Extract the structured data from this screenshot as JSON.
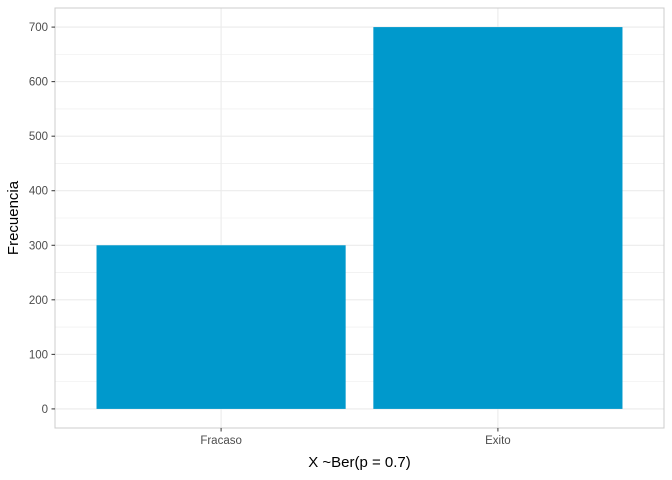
{
  "chart_data": {
    "type": "bar",
    "title": "",
    "xlabel": "X ~Ber(p = 0.7)",
    "ylabel": "Frecuencia",
    "categories": [
      "Fracaso",
      "Exito"
    ],
    "values": [
      300,
      700
    ],
    "ylim": [
      -35,
      735
    ],
    "yticks": [
      0,
      100,
      200,
      300,
      400,
      500,
      600,
      700
    ],
    "grid": true,
    "legend": "none",
    "bar_color": "#0099CC",
    "grid_color": "#ebebeb",
    "panel_border_color": "#cccccc"
  }
}
